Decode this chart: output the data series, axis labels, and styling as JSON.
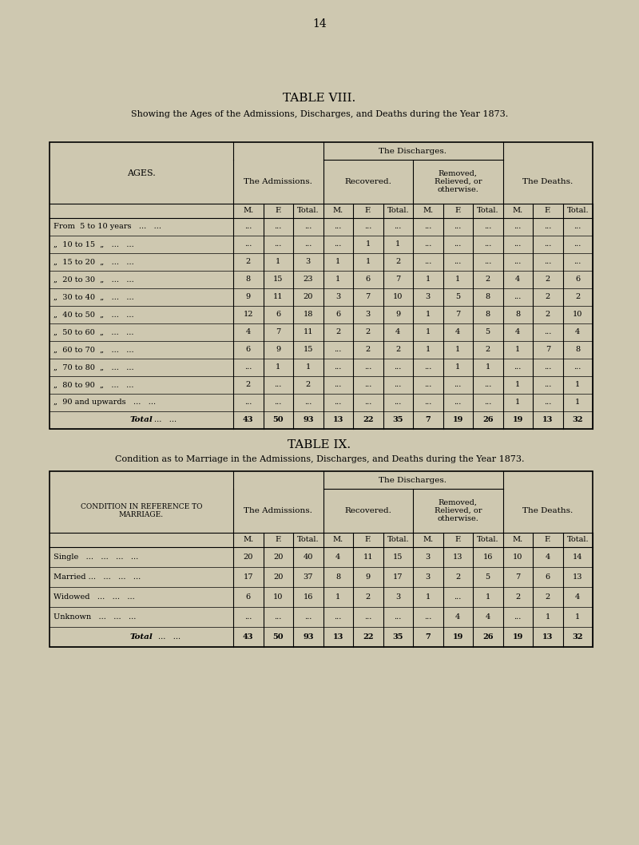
{
  "bg_color": "#cec8b0",
  "page_number": "14",
  "table8": {
    "title": "TABLE VIII.",
    "subtitle": "Showing the Ages of the Admissions, Discharges, and Deaths during the Year 1873.",
    "rows": [
      [
        "From  5 to 10 years   ...   ...",
        "...",
        "...",
        "...",
        "...",
        "...",
        "...",
        "...",
        "...",
        "...",
        "...",
        "...",
        "..."
      ],
      [
        "„  10 to 15  „   ...   ...",
        "...",
        "...",
        "...",
        "...",
        "1",
        "1",
        "...",
        "...",
        "...",
        "...",
        "...",
        "..."
      ],
      [
        "„  15 to 20  „   ...   ...",
        "2",
        "1",
        "3",
        "1",
        "1",
        "2",
        "...",
        "...",
        "...",
        "...",
        "...",
        "..."
      ],
      [
        "„  20 to 30  „   ...   ...",
        "8",
        "15",
        "23",
        "1",
        "6",
        "7",
        "1",
        "1",
        "2",
        "4",
        "2",
        "6"
      ],
      [
        "„  30 to 40  „   ...   ...",
        "9",
        "11",
        "20",
        "3",
        "7",
        "10",
        "3",
        "5",
        "8",
        "...",
        "2",
        "2"
      ],
      [
        "„  40 to 50  „   ...   ...",
        "12",
        "6",
        "18",
        "6",
        "3",
        "9",
        "1",
        "7",
        "8",
        "8",
        "2",
        "10"
      ],
      [
        "„  50 to 60  „   ...   ...",
        "4",
        "7",
        "11",
        "2",
        "2",
        "4",
        "1",
        "4",
        "5",
        "4",
        "...",
        "4"
      ],
      [
        "„  60 to 70  „   ...   ...",
        "6",
        "9",
        "15",
        "...",
        "2",
        "2",
        "1",
        "1",
        "2",
        "1",
        "7",
        "8"
      ],
      [
        "„  70 to 80  „   ...   ...",
        "...",
        "1",
        "1",
        "...",
        "...",
        "...",
        "...",
        "1",
        "1",
        "...",
        "...",
        "..."
      ],
      [
        "„  80 to 90  „   ...   ...",
        "2",
        "...",
        "2",
        "...",
        "...",
        "...",
        "...",
        "...",
        "...",
        "1",
        "...",
        "1"
      ],
      [
        "„  90 and upwards   ...   ...",
        "...",
        "...",
        "...",
        "...",
        "...",
        "...",
        "...",
        "...",
        "...",
        "1",
        "...",
        "1"
      ],
      [
        "Total   ...   ...",
        "43",
        "50",
        "93",
        "13",
        "22",
        "35",
        "7",
        "19",
        "26",
        "19",
        "13",
        "32"
      ]
    ]
  },
  "table9": {
    "title": "TABLE IX.",
    "subtitle": "Condition as to Marriage in the Admissions, Discharges, and Deaths during the Year 1873.",
    "rows": [
      [
        "Single   ...   ...   ...   ...",
        "20",
        "20",
        "40",
        "4",
        "11",
        "15",
        "3",
        "13",
        "16",
        "10",
        "4",
        "14"
      ],
      [
        "Married ...   ...   ...   ...",
        "17",
        "20",
        "37",
        "8",
        "9",
        "17",
        "3",
        "2",
        "5",
        "7",
        "6",
        "13"
      ],
      [
        "Widowed   ...   ...   ...",
        "6",
        "10",
        "16",
        "1",
        "2",
        "3",
        "1",
        "...",
        "1",
        "2",
        "2",
        "4"
      ],
      [
        "Unknown   ...   ...   ...",
        "...",
        "...",
        "...",
        "...",
        "...",
        "...",
        "...",
        "4",
        "4",
        "...",
        "1",
        "1"
      ],
      [
        "Total   ...   ...",
        "43",
        "50",
        "93",
        "13",
        "22",
        "35",
        "7",
        "19",
        "26",
        "19",
        "13",
        "32"
      ]
    ]
  }
}
